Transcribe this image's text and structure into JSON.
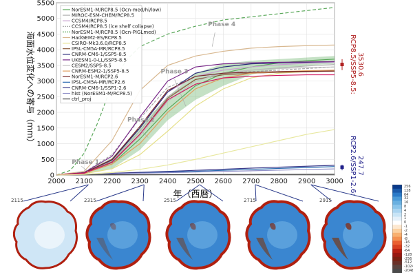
{
  "chart_data": {
    "type": "line",
    "xlabel": "年（西暦）",
    "ylabel": "海面水位変化への寄与（mm）",
    "xlim": [
      2000,
      3000
    ],
    "ylim": [
      0,
      5500
    ],
    "x_ticks": [
      2000,
      2100,
      2200,
      2300,
      2400,
      2500,
      2600,
      2700,
      2800,
      2900,
      3000
    ],
    "y_ticks": [
      0,
      500,
      1000,
      1500,
      2000,
      2500,
      3000,
      3500,
      4000,
      4500,
      5000,
      5500
    ],
    "grid": true,
    "legend_position": "top-left",
    "series": [
      {
        "name": "NorESM1-M/RCP8.5 (Ocn-med/hi/low)",
        "color": "#5aa85a",
        "dash": "",
        "x": [
          2000,
          2100,
          2200,
          2300,
          2400,
          2500,
          2600,
          2700,
          2800,
          2900,
          3000
        ],
        "y": [
          0,
          60,
          350,
          1150,
          2100,
          2850,
          3250,
          3450,
          3580,
          3650,
          3700
        ]
      },
      {
        "name": "MIROC-ESM-CHEM/RCP8.5",
        "color": "#b0b0b0",
        "dash": "",
        "x": [
          2000,
          2100,
          2200,
          2300,
          2400,
          2500,
          2600,
          2700,
          2800,
          2900,
          3000
        ],
        "y": [
          0,
          70,
          450,
          1400,
          2500,
          3050,
          3250,
          3350,
          3420,
          3480,
          3530
        ]
      },
      {
        "name": "CCSM4/RCP8.5",
        "color": "#c8a0d0",
        "dash": "",
        "x": [
          2000,
          2100,
          2200,
          2300,
          2400,
          2500,
          2600,
          2700,
          2800,
          2900,
          3000
        ],
        "y": [
          0,
          70,
          500,
          1550,
          2650,
          3150,
          3350,
          3450,
          3520,
          3570,
          3600
        ]
      },
      {
        "name": "CCSM4/RCP8.5 (ice shelf collapse)",
        "color": "#a8a8a8",
        "dash": "4,2",
        "x": [
          2000,
          2100,
          2200,
          2300,
          2400,
          2500,
          2600,
          2700,
          2800,
          2900,
          3000
        ],
        "y": [
          0,
          90,
          650,
          1800,
          2800,
          3150,
          3250,
          3300,
          3350,
          3400,
          3450
        ]
      },
      {
        "name": "NorESM1-M/RCP8.5 (Ocn-PIGLmed)",
        "color": "#5aa85a",
        "dash": "5,3",
        "x": [
          2000,
          2050,
          2100,
          2150,
          2200,
          2250,
          2300,
          2400,
          2500,
          2600,
          2700,
          2800,
          2900,
          3000
        ],
        "y": [
          0,
          150,
          700,
          1700,
          2900,
          3650,
          4100,
          4500,
          4750,
          4950,
          5050,
          5150,
          5250,
          5350
        ]
      },
      {
        "name": "HadGEM2-ES/RCP8.5",
        "color": "#d8b890",
        "dash": "",
        "x": [
          2000,
          2100,
          2200,
          2300,
          2400,
          2500,
          2600,
          2700,
          2800,
          2900,
          3000
        ],
        "y": [
          0,
          120,
          1100,
          2700,
          3500,
          3800,
          3950,
          4050,
          4100,
          4130,
          4150
        ]
      },
      {
        "name": "CSIRO-Mk3.6.0/RCP8.5",
        "color": "#e6e08a",
        "dash": "",
        "x": [
          2000,
          2100,
          2200,
          2300,
          2400,
          2500,
          2600,
          2700,
          2800,
          2900,
          3000
        ],
        "y": [
          0,
          40,
          200,
          650,
          1400,
          2200,
          2750,
          3100,
          3250,
          3300,
          3320
        ]
      },
      {
        "name": "IPSL-CM5A-MR/RCP8.5",
        "color": "#8a5a3a",
        "dash": "",
        "x": [
          2000,
          2100,
          2200,
          2300,
          2400,
          2500,
          2600,
          2700,
          2800,
          2900,
          3000
        ],
        "y": [
          0,
          60,
          420,
          1300,
          2450,
          3050,
          3200,
          3250,
          3280,
          3300,
          3320
        ]
      },
      {
        "name": "CNRM-CM6-1/SSP5-8.5",
        "color": "#2a2a7a",
        "dash": "",
        "x": [
          2000,
          2100,
          2200,
          2300,
          2400,
          2500,
          2600,
          2700,
          2800,
          2900,
          3000
        ],
        "y": [
          0,
          70,
          480,
          1500,
          2650,
          3250,
          3450,
          3550,
          3580,
          3600,
          3620
        ]
      },
      {
        "name": "UKESM1-0-LL/SSP5-8.5",
        "color": "#7a2a8a",
        "dash": "",
        "x": [
          2000,
          2100,
          2200,
          2300,
          2400,
          2500,
          2600,
          2700,
          2800,
          2900,
          3000
        ],
        "y": [
          0,
          80,
          600,
          1850,
          3000,
          3450,
          3550,
          3580,
          3600,
          3610,
          3620
        ]
      },
      {
        "name": "CESM2/SSP5-8.5",
        "color": "#c0c0c0",
        "dash": "",
        "x": [
          2000,
          2100,
          2200,
          2300,
          2400,
          2500,
          2600,
          2700,
          2800,
          2900,
          3000
        ],
        "y": [
          0,
          60,
          400,
          1250,
          2350,
          3000,
          3250,
          3350,
          3400,
          3430,
          3450
        ]
      },
      {
        "name": "CNRM-ESM2-1/SSP5-8.5",
        "color": "#e0a060",
        "dash": "",
        "x": [
          2000,
          2100,
          2200,
          2300,
          2400,
          2500,
          2600,
          2700,
          2800,
          2900,
          3000
        ],
        "y": [
          0,
          50,
          350,
          1000,
          2000,
          2750,
          3100,
          3250,
          3300,
          3330,
          3350
        ]
      },
      {
        "name": "NorESM1-M/RCP2.6",
        "color": "#7a2a2a",
        "dash": "",
        "x": [
          2000,
          2100,
          2200,
          2300,
          2400,
          2500,
          2600,
          2700,
          2800,
          2900,
          3000
        ],
        "y": [
          0,
          70,
          500,
          1550,
          2700,
          3150,
          3250,
          3280,
          3300,
          3310,
          3320
        ]
      },
      {
        "name": "IPSL-CM5A-MR/RCP2.6",
        "color": "#2a6ab0",
        "dash": "",
        "x": [
          2000,
          2100,
          2200,
          2300,
          2400,
          2500,
          2600,
          2700,
          2800,
          2900,
          3000
        ],
        "y": [
          0,
          20,
          45,
          70,
          95,
          120,
          150,
          180,
          210,
          240,
          270
        ]
      },
      {
        "name": "CNRM-CM6-1/SSP1-2.6",
        "color": "#3a3a8a",
        "dash": "",
        "x": [
          2000,
          2100,
          2200,
          2300,
          2400,
          2500,
          2600,
          2700,
          2800,
          2900,
          3000
        ],
        "y": [
          0,
          25,
          55,
          85,
          115,
          150,
          185,
          220,
          250,
          280,
          310
        ]
      },
      {
        "name": "hist (NorESM1-M/RCP8.5)",
        "color": "#9090c8",
        "dash": "",
        "x": [
          2000,
          2100,
          2200,
          2300,
          2400,
          2500,
          2600,
          2700,
          2800,
          2900,
          3000
        ],
        "y": [
          0,
          15,
          35,
          55,
          75,
          95,
          115,
          135,
          155,
          175,
          195
        ]
      },
      {
        "name": "ctrl_proj",
        "color": "#444444",
        "dash": "",
        "x": [
          2000,
          2100,
          2200,
          2300,
          2400,
          2500,
          2600,
          2700,
          2800,
          2900,
          3000
        ],
        "y": [
          0,
          5,
          8,
          10,
          12,
          14,
          16,
          18,
          20,
          22,
          24
        ]
      },
      {
        "name": "",
        "color": "#d01860",
        "dash": "",
        "x": [
          2000,
          2100,
          2200,
          2300,
          2400,
          2500,
          2600,
          2700,
          2800,
          2900,
          3000
        ],
        "y": [
          0,
          60,
          400,
          1300,
          2400,
          2900,
          3100,
          3150,
          3180,
          3200,
          3200
        ]
      },
      {
        "name": "",
        "color": "#e8e8a0",
        "dash": "",
        "x": [
          2000,
          2100,
          2200,
          2300,
          2400,
          2500,
          2600,
          2700,
          2800,
          2900,
          3000
        ],
        "y": [
          0,
          20,
          80,
          180,
          320,
          500,
          700,
          900,
          1100,
          1300,
          1450
        ]
      }
    ],
    "band": {
      "color": "#5aa85a",
      "x": [
        2000,
        2100,
        2200,
        2300,
        2400,
        2500,
        2600,
        2700,
        2800,
        2900,
        3000
      ],
      "low": [
        0,
        30,
        200,
        800,
        1750,
        2400,
        2850,
        3200,
        3400,
        3500,
        3550
      ],
      "high": [
        0,
        100,
        550,
        1550,
        2500,
        3250,
        3550,
        3650,
        3700,
        3750,
        3800
      ]
    },
    "annotations": [
      {
        "text": "Phase 1",
        "x": 2055,
        "y": 350
      },
      {
        "text": "Phase 2",
        "x": 2255,
        "y": 1700
      },
      {
        "text": "Phase 3",
        "x": 2375,
        "y": 3250
      },
      {
        "text": "Phase 4",
        "x": 2545,
        "y": 4750
      }
    ],
    "right_labels": [
      {
        "lines": [
          "RCP8.5/SSP5-8.5:",
          "3530.6"
        ],
        "color": "#b02020",
        "y": 3530
      },
      {
        "lines": [
          "RCP2.6/SSP1-2.6:",
          "247.7"
        ],
        "color": "#20208a",
        "y": 300
      }
    ],
    "right_markers": [
      {
        "y": 3530,
        "low": 3350,
        "high": 3700,
        "color": "#b02020"
      },
      {
        "y": 248,
        "low": 150,
        "high": 330,
        "color": "#20208a"
      }
    ]
  },
  "maps": [
    {
      "year_label": "2115"
    },
    {
      "year_label": "2315"
    },
    {
      "year_label": "2515"
    },
    {
      "year_label": "2715"
    },
    {
      "year_label": "2915"
    }
  ],
  "colorbar": {
    "ticks": [
      "256",
      "128",
      "64",
      "32",
      "16",
      "8",
      "4",
      "2",
      "1",
      "0",
      "-1",
      "-2",
      "-4",
      "-8",
      "-16",
      "-32",
      "-64",
      "-128",
      "-256",
      "-512",
      "-1024",
      "-2048"
    ],
    "colors": [
      "#0a3a8a",
      "#1a5aaa",
      "#2a7ac8",
      "#4a9ad8",
      "#6ab0e0",
      "#8ac4ea",
      "#aad4f0",
      "#c8e4f6",
      "#e4f0fa",
      "#ffffff",
      "#fde8d0",
      "#fbd0a0",
      "#f8b070",
      "#f49050",
      "#ea6030",
      "#d84020",
      "#b82010",
      "#981810",
      "#7a2010",
      "#6a3028",
      "#5a4440",
      "#4a4a4a"
    ]
  }
}
